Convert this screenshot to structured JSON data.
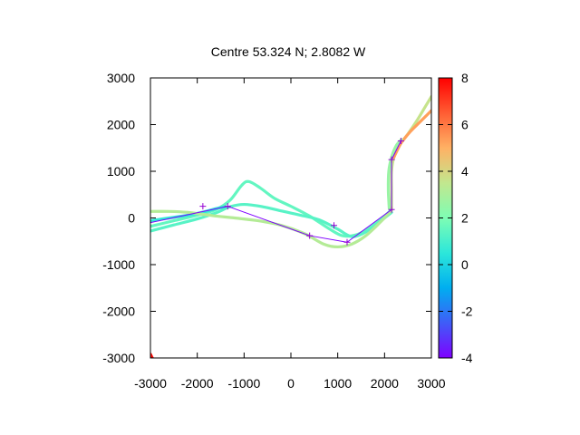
{
  "chart_data": {
    "type": "scatter",
    "title": "Centre 53.324 N; 2.8082  W",
    "xlim": [
      -3000,
      3000
    ],
    "ylim": [
      -3000,
      3000
    ],
    "xticks": [
      "-3000",
      "-2000",
      "-1000",
      "0",
      "1000",
      "2000",
      "3000"
    ],
    "yticks": [
      "3000",
      "2000",
      "1000",
      "0",
      "-1000",
      "-2000",
      "-3000"
    ],
    "colorbar": {
      "range": [
        -4,
        8
      ],
      "ticks": [
        "8",
        "6",
        "4",
        "2",
        "0",
        "-2",
        "-4"
      ],
      "palette": "rainbow"
    },
    "tracks": [
      {
        "value": 1.5,
        "points": [
          [
            -3000,
            -180
          ],
          [
            -2500,
            -60
          ],
          [
            -2000,
            60
          ],
          [
            -1600,
            180
          ],
          [
            -1300,
            380
          ],
          [
            -1050,
            700
          ],
          [
            -900,
            780
          ],
          [
            -650,
            640
          ],
          [
            -350,
            420
          ],
          [
            0,
            250
          ],
          [
            400,
            40
          ],
          [
            800,
            -220
          ],
          [
            1100,
            -380
          ],
          [
            1400,
            -360
          ],
          [
            1700,
            -200
          ],
          [
            2000,
            40
          ],
          [
            2150,
            180
          ]
        ]
      },
      {
        "value": 1.3,
        "points": [
          [
            -3000,
            -280
          ],
          [
            -2500,
            -150
          ],
          [
            -2000,
            -20
          ],
          [
            -1600,
            110
          ],
          [
            -1300,
            240
          ],
          [
            -1000,
            290
          ],
          [
            -600,
            240
          ],
          [
            -200,
            150
          ],
          [
            200,
            60
          ],
          [
            600,
            -40
          ],
          [
            1000,
            -240
          ],
          [
            1300,
            -400
          ],
          [
            1600,
            -300
          ],
          [
            1900,
            -80
          ],
          [
            2150,
            120
          ]
        ]
      },
      {
        "value": 0.6,
        "points": [
          [
            -3000,
            -60
          ],
          [
            -2600,
            0
          ],
          [
            -2200,
            60
          ],
          [
            -1900,
            120
          ],
          [
            -1600,
            200
          ],
          [
            -1400,
            240
          ]
        ]
      },
      {
        "value": 3.2,
        "points": [
          [
            -3000,
            140
          ],
          [
            -2600,
            140
          ],
          [
            -2200,
            120
          ],
          [
            -1900,
            80
          ],
          [
            -1600,
            40
          ],
          [
            -1200,
            0
          ],
          [
            -700,
            -60
          ],
          [
            -200,
            -160
          ],
          [
            300,
            -340
          ],
          [
            700,
            -560
          ],
          [
            1000,
            -620
          ],
          [
            1300,
            -560
          ],
          [
            1600,
            -380
          ],
          [
            1900,
            -100
          ],
          [
            2150,
            160
          ]
        ]
      },
      {
        "value": 3.6,
        "points": [
          [
            2150,
            180
          ],
          [
            2150,
            600
          ],
          [
            2150,
            1000
          ],
          [
            2200,
            1300
          ],
          [
            2320,
            1560
          ],
          [
            2500,
            1800
          ],
          [
            2700,
            2100
          ],
          [
            2850,
            2350
          ],
          [
            3000,
            2600
          ]
        ]
      },
      {
        "value": 5.3,
        "points": [
          [
            2200,
            1300
          ],
          [
            2350,
            1600
          ],
          [
            2550,
            1850
          ],
          [
            2750,
            2050
          ],
          [
            2900,
            2200
          ],
          [
            3000,
            2300
          ]
        ]
      },
      {
        "value": 2.6,
        "points": [
          [
            2100,
            200
          ],
          [
            2080,
            600
          ],
          [
            2090,
            1000
          ],
          [
            2150,
            1300
          ],
          [
            2250,
            1550
          ],
          [
            2360,
            1680
          ]
        ]
      },
      {
        "value": 7.8,
        "points": [
          [
            -3000,
            -2920
          ],
          [
            -2960,
            -3000
          ]
        ]
      }
    ],
    "path": {
      "color": "#7f00ff",
      "points": [
        [
          -3000,
          -100
        ],
        [
          -1350,
          250
        ],
        [
          400,
          -380
        ],
        [
          1200,
          -520
        ],
        [
          2150,
          180
        ],
        [
          2150,
          1250
        ],
        [
          2350,
          1650
        ]
      ]
    },
    "markers": {
      "color": "#9400d3",
      "points": [
        [
          -1880,
          250
        ],
        [
          -1350,
          250
        ],
        [
          400,
          -380
        ],
        [
          920,
          -160
        ],
        [
          1200,
          -520
        ],
        [
          2150,
          180
        ],
        [
          2150,
          1250
        ],
        [
          2350,
          1650
        ]
      ]
    }
  }
}
